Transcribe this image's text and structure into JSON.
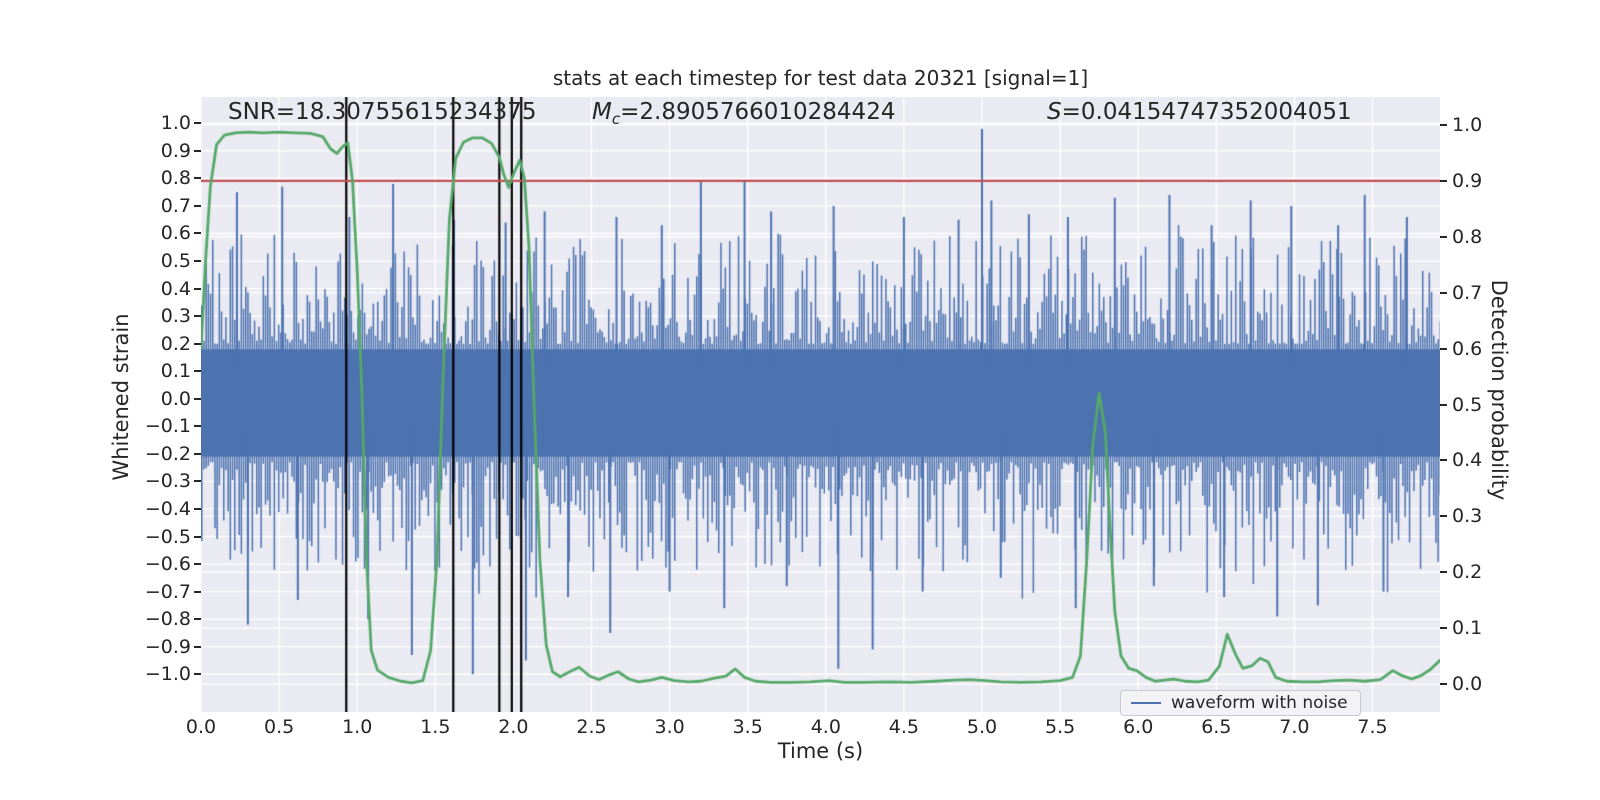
{
  "figure": {
    "title": "stats at each timestep for test data 20321 [signal=1]",
    "annotations": {
      "snr": "SNR=18.30755615234375",
      "mc_prefix": "M",
      "mc_sub": "c",
      "mc_value": "=2.8905766010284424",
      "s_prefix": "S",
      "s_value": "=0.04154747352004051"
    },
    "xlabel": "Time (s)",
    "ylabel_left": "Whitened strain",
    "ylabel_right": "Detection probability",
    "legend": {
      "items": [
        {
          "label": "waveform with noise",
          "color": "#4c72b0"
        }
      ]
    }
  },
  "colors": {
    "plot_background": "#eaeaf2",
    "grid": "#ffffff",
    "waveform": "#4c72b0",
    "detection_curve": "#55a868",
    "threshold": "#c44e52",
    "event_marker": "#000000",
    "text": "#262626"
  },
  "chart_data": {
    "type": "line",
    "title": "stats at each timestep for test data 20321 [signal=1]",
    "xlabel": "Time (s)",
    "ylabel_left": "Whitened strain",
    "ylabel_right": "Detection probability",
    "xlim": [
      0.0,
      7.932
    ],
    "ylim_left": [
      -1.137,
      1.0955
    ],
    "ylim_right": [
      -0.05,
      1.05
    ],
    "grid": true,
    "x_tick_labels": [
      "0.0",
      "0.5",
      "1.0",
      "1.5",
      "2.0",
      "2.5",
      "3.0",
      "3.5",
      "4.0",
      "4.5",
      "5.0",
      "5.5",
      "6.0",
      "6.5",
      "7.0",
      "7.5"
    ],
    "x_tick_values": [
      0.0,
      0.5,
      1.0,
      1.5,
      2.0,
      2.5,
      3.0,
      3.5,
      4.0,
      4.5,
      5.0,
      5.5,
      6.0,
      6.5,
      7.0,
      7.5
    ],
    "left_tick_labels": [
      "1.0",
      "0.9",
      "0.8",
      "0.7",
      "0.6",
      "0.5",
      "0.4",
      "0.3",
      "0.2",
      "0.1",
      "0.0",
      "−0.1",
      "−0.2",
      "−0.3",
      "−0.4",
      "−0.5",
      "−0.6",
      "−0.7",
      "−0.8",
      "−0.9",
      "−1.0"
    ],
    "left_tick_values": [
      1.0,
      0.9,
      0.8,
      0.7,
      0.6,
      0.5,
      0.4,
      0.3,
      0.2,
      0.1,
      0.0,
      -0.1,
      -0.2,
      -0.3,
      -0.4,
      -0.5,
      -0.6,
      -0.7,
      -0.8,
      -0.9,
      -1.0
    ],
    "right_tick_labels": [
      "1.0",
      "0.9",
      "0.8",
      "0.7",
      "0.6",
      "0.5",
      "0.4",
      "0.3",
      "0.2",
      "0.1",
      "0.0"
    ],
    "right_tick_values": [
      1.0,
      0.9,
      0.8,
      0.7,
      0.6,
      0.5,
      0.4,
      0.3,
      0.2,
      0.1,
      0.0
    ],
    "threshold_line": {
      "axis": "right",
      "value": 0.9,
      "color": "#c44e52"
    },
    "event_marker_times": [
      0.93,
      1.615,
      1.91,
      1.99,
      2.05
    ],
    "series": [
      {
        "name": "waveform with noise",
        "axis": "left",
        "color": "#4c72b0",
        "type": "noise",
        "solid_core_band": [
          -0.21,
          0.18
        ],
        "typical_extent": [
          -0.62,
          0.62
        ],
        "notable_spikes": [
          [
            0.23,
            0.75
          ],
          [
            0.3,
            -0.82
          ],
          [
            0.52,
            0.77
          ],
          [
            0.62,
            -0.73
          ],
          [
            0.95,
            0.66
          ],
          [
            1.07,
            -0.8
          ],
          [
            1.23,
            0.78
          ],
          [
            1.35,
            -0.93
          ],
          [
            1.62,
            0.65
          ],
          [
            1.74,
            -1.0
          ],
          [
            1.95,
            0.64
          ],
          [
            2.08,
            -0.95
          ],
          [
            2.2,
            0.68
          ],
          [
            2.35,
            -0.72
          ],
          [
            2.62,
            -0.85
          ],
          [
            2.66,
            0.66
          ],
          [
            2.95,
            0.63
          ],
          [
            3.0,
            -0.7
          ],
          [
            3.2,
            0.79
          ],
          [
            3.35,
            -0.76
          ],
          [
            3.48,
            0.79
          ],
          [
            3.65,
            0.68
          ],
          [
            3.75,
            -0.68
          ],
          [
            4.05,
            0.7
          ],
          [
            4.08,
            -0.98
          ],
          [
            4.3,
            -0.91
          ],
          [
            4.5,
            0.66
          ],
          [
            4.62,
            -0.7
          ],
          [
            4.85,
            0.65
          ],
          [
            5.0,
            0.98
          ],
          [
            5.06,
            0.72
          ],
          [
            5.12,
            -0.65
          ],
          [
            5.3,
            0.67
          ],
          [
            5.55,
            0.66
          ],
          [
            5.6,
            -0.76
          ],
          [
            5.85,
            0.73
          ],
          [
            6.1,
            -0.68
          ],
          [
            6.2,
            0.74
          ],
          [
            6.47,
            0.63
          ],
          [
            6.55,
            -0.72
          ],
          [
            6.72,
            0.72
          ],
          [
            6.89,
            -0.79
          ],
          [
            6.98,
            0.7
          ],
          [
            7.15,
            -0.75
          ],
          [
            7.28,
            0.63
          ],
          [
            7.45,
            0.74
          ],
          [
            7.57,
            -0.7
          ],
          [
            7.72,
            0.66
          ]
        ]
      },
      {
        "name": "detection probability",
        "axis": "right",
        "color": "#55a868",
        "type": "line",
        "points": [
          [
            0.0,
            0.6
          ],
          [
            0.03,
            0.76
          ],
          [
            0.06,
            0.89
          ],
          [
            0.1,
            0.965
          ],
          [
            0.15,
            0.982
          ],
          [
            0.22,
            0.986
          ],
          [
            0.3,
            0.987
          ],
          [
            0.4,
            0.986
          ],
          [
            0.5,
            0.987
          ],
          [
            0.6,
            0.986
          ],
          [
            0.7,
            0.985
          ],
          [
            0.78,
            0.979
          ],
          [
            0.83,
            0.957
          ],
          [
            0.87,
            0.949
          ],
          [
            0.91,
            0.962
          ],
          [
            0.94,
            0.968
          ],
          [
            0.97,
            0.9
          ],
          [
            1.0,
            0.74
          ],
          [
            1.03,
            0.52
          ],
          [
            1.06,
            0.22
          ],
          [
            1.09,
            0.06
          ],
          [
            1.13,
            0.025
          ],
          [
            1.2,
            0.012
          ],
          [
            1.28,
            0.005
          ],
          [
            1.35,
            0.002
          ],
          [
            1.42,
            0.006
          ],
          [
            1.47,
            0.06
          ],
          [
            1.51,
            0.22
          ],
          [
            1.55,
            0.55
          ],
          [
            1.59,
            0.83
          ],
          [
            1.63,
            0.94
          ],
          [
            1.68,
            0.969
          ],
          [
            1.74,
            0.977
          ],
          [
            1.8,
            0.977
          ],
          [
            1.86,
            0.967
          ],
          [
            1.91,
            0.942
          ],
          [
            1.94,
            0.91
          ],
          [
            1.97,
            0.888
          ],
          [
            2.0,
            0.912
          ],
          [
            2.04,
            0.937
          ],
          [
            2.07,
            0.905
          ],
          [
            2.1,
            0.78
          ],
          [
            2.13,
            0.52
          ],
          [
            2.17,
            0.22
          ],
          [
            2.21,
            0.07
          ],
          [
            2.25,
            0.022
          ],
          [
            2.3,
            0.013
          ],
          [
            2.36,
            0.022
          ],
          [
            2.42,
            0.03
          ],
          [
            2.49,
            0.014
          ],
          [
            2.55,
            0.008
          ],
          [
            2.61,
            0.016
          ],
          [
            2.67,
            0.022
          ],
          [
            2.74,
            0.009
          ],
          [
            2.8,
            0.004
          ],
          [
            2.88,
            0.007
          ],
          [
            2.95,
            0.012
          ],
          [
            3.03,
            0.006
          ],
          [
            3.12,
            0.004
          ],
          [
            3.2,
            0.005
          ],
          [
            3.28,
            0.01
          ],
          [
            3.36,
            0.014
          ],
          [
            3.42,
            0.027
          ],
          [
            3.48,
            0.012
          ],
          [
            3.55,
            0.005
          ],
          [
            3.65,
            0.003
          ],
          [
            3.78,
            0.003
          ],
          [
            3.9,
            0.004
          ],
          [
            4.02,
            0.006
          ],
          [
            4.12,
            0.003
          ],
          [
            4.25,
            0.003
          ],
          [
            4.4,
            0.004
          ],
          [
            4.55,
            0.003
          ],
          [
            4.7,
            0.005
          ],
          [
            4.82,
            0.007
          ],
          [
            4.92,
            0.008
          ],
          [
            5.02,
            0.006
          ],
          [
            5.12,
            0.004
          ],
          [
            5.25,
            0.003
          ],
          [
            5.38,
            0.004
          ],
          [
            5.5,
            0.006
          ],
          [
            5.58,
            0.012
          ],
          [
            5.63,
            0.05
          ],
          [
            5.67,
            0.22
          ],
          [
            5.71,
            0.43
          ],
          [
            5.75,
            0.52
          ],
          [
            5.79,
            0.45
          ],
          [
            5.82,
            0.28
          ],
          [
            5.85,
            0.13
          ],
          [
            5.89,
            0.05
          ],
          [
            5.94,
            0.028
          ],
          [
            5.99,
            0.024
          ],
          [
            6.05,
            0.012
          ],
          [
            6.11,
            0.005
          ],
          [
            6.17,
            0.007
          ],
          [
            6.23,
            0.009
          ],
          [
            6.3,
            0.005
          ],
          [
            6.38,
            0.004
          ],
          [
            6.45,
            0.007
          ],
          [
            6.52,
            0.032
          ],
          [
            6.57,
            0.089
          ],
          [
            6.62,
            0.055
          ],
          [
            6.67,
            0.028
          ],
          [
            6.73,
            0.033
          ],
          [
            6.78,
            0.046
          ],
          [
            6.83,
            0.04
          ],
          [
            6.88,
            0.012
          ],
          [
            6.95,
            0.005
          ],
          [
            7.05,
            0.004
          ],
          [
            7.15,
            0.004
          ],
          [
            7.25,
            0.006
          ],
          [
            7.35,
            0.007
          ],
          [
            7.45,
            0.005
          ],
          [
            7.55,
            0.008
          ],
          [
            7.63,
            0.024
          ],
          [
            7.69,
            0.015
          ],
          [
            7.75,
            0.009
          ],
          [
            7.81,
            0.015
          ],
          [
            7.87,
            0.026
          ],
          [
            7.93,
            0.042
          ]
        ]
      }
    ],
    "legend": {
      "labels": [
        "waveform with noise"
      ],
      "position": "lower right"
    }
  }
}
